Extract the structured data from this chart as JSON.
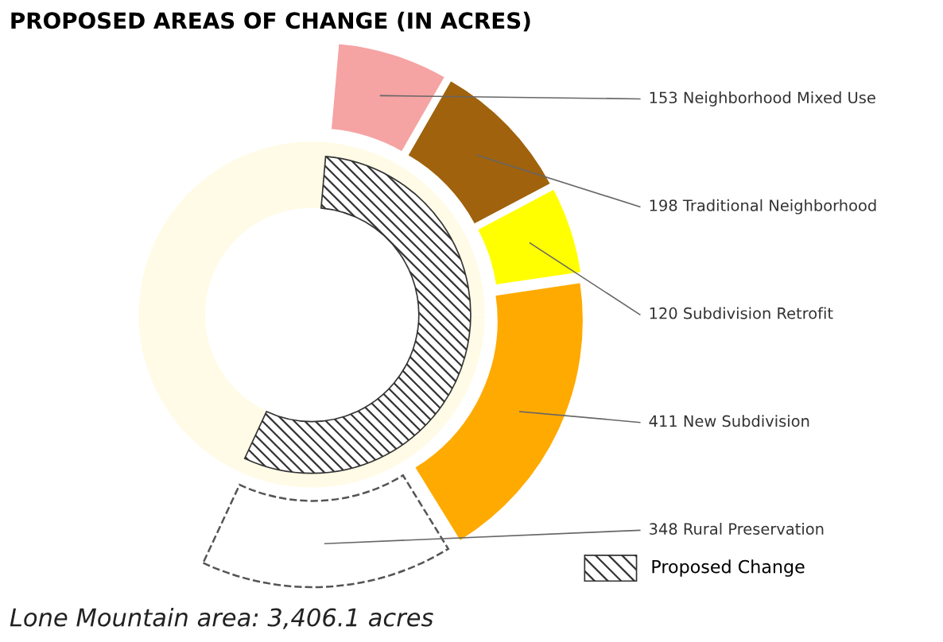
{
  "chart_data": {
    "type": "donut",
    "title": "PROPOSED AREAS OF CHANGE (IN ACRES)",
    "categories": [
      "153 Neighborhood Mixed Use",
      "198 Traditional Neighborhood",
      "120 Subdivision Retrofit",
      "411 New Subdivision",
      "348 Rural Preservation"
    ],
    "values": [
      153,
      198,
      120,
      411,
      348
    ],
    "colors": [
      "#f5a3a3",
      "#a0620c",
      "#ffff00",
      "#ffaa00",
      "#ffffff"
    ],
    "annotations": [
      "Proposed Change",
      "Lone Mountain area: 3,406.1 acres"
    ]
  }
}
